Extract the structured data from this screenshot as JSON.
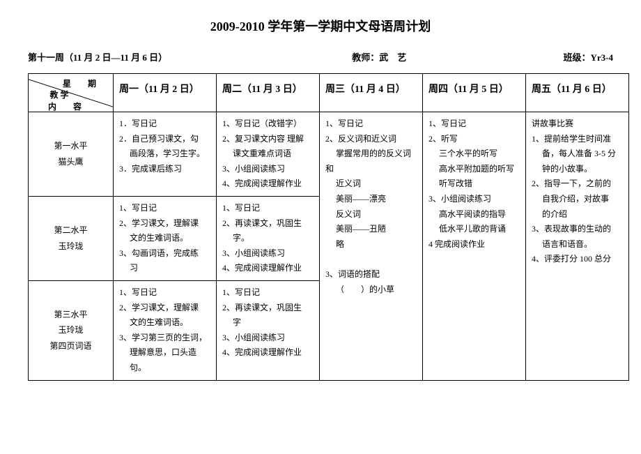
{
  "doc": {
    "title": "2009-2010 学年第一学期中文母语周计划",
    "week": "第十一周（11 月 2 日—11 月 6 日）",
    "teacher_label": "教师：",
    "teacher_name": "武　艺",
    "class_label": "班级：",
    "class_name": "Yr3-4"
  },
  "diag": {
    "top": "星　期",
    "bottom_line1": "教 学",
    "bottom_line2": "内　容"
  },
  "days": {
    "mon": "周一（11 月 2 日）",
    "tue": "周二（11 月 3 日）",
    "wed": "周三（11 月 4 日）",
    "thu": "周四（11 月 5 日）",
    "fri": "周五（11 月 6 日）"
  },
  "levels": {
    "l1": "第一水平\n猫头鹰",
    "l2": "第二水平\n玉玲珑",
    "l3": "第三水平\n玉玲珑\n第四页词语"
  },
  "cells": {
    "r1_mon": "1．写日记\n2．自己预习课文，勾\n　 画段落，学习生字。\n3．完成课后练习",
    "r1_tue": "1、写日记（改错字）\n2、复习课文内容  理解\n　 课文重难点词语\n3、小组阅读练习\n4、完成阅读理解作业",
    "wed_merged": "1、写日记\n2、反义词和近义词\n　 掌握常用的的反义词和\n　 近义词\n　 美丽——漂亮\n　 反义词\n　 美丽——丑陋\n　 略\n\n3、词语的搭配\n　 （　　）的小草",
    "thu_merged": "1、写日记\n2、听写\n　 三个水平的听写\n　 高水平附加题的听写\n　 听写改错\n3、小组阅读练习\n　 高水平阅读的指导\n　 低水平儿歌的背诵\n4 完成阅读作业",
    "fri_merged": "讲故事比赛\n1、提前给学生时间准\n　 备，每人准备 3-5 分\n　 钟的小故事。\n2、指导一下，之前的\n　 自我介绍，对故事\n　 的介绍\n3、表现故事的生动的\n　 语言和语音。\n4、评委打分 100 总分",
    "r2_mon": "1、写日记\n2、学习课文，理解课\n　 文的生难词语。\n3、勾画词语，完成练\n　 习",
    "r2_tue": "1、写日记\n2、再读课文，巩固生\n　 字。\n3、小组阅读练习\n4、完成阅读理解作业",
    "r3_mon": "1、写日记\n2、学习课文，理解课\n　 文的生难词语。\n3、学习第三页的生词，\n　 理解意思，口头造\n　 句。",
    "r3_tue": "1、写日记\n2、再读课文，巩固生\n　 字\n3、小组阅读练习\n4、完成阅读理解作业"
  }
}
